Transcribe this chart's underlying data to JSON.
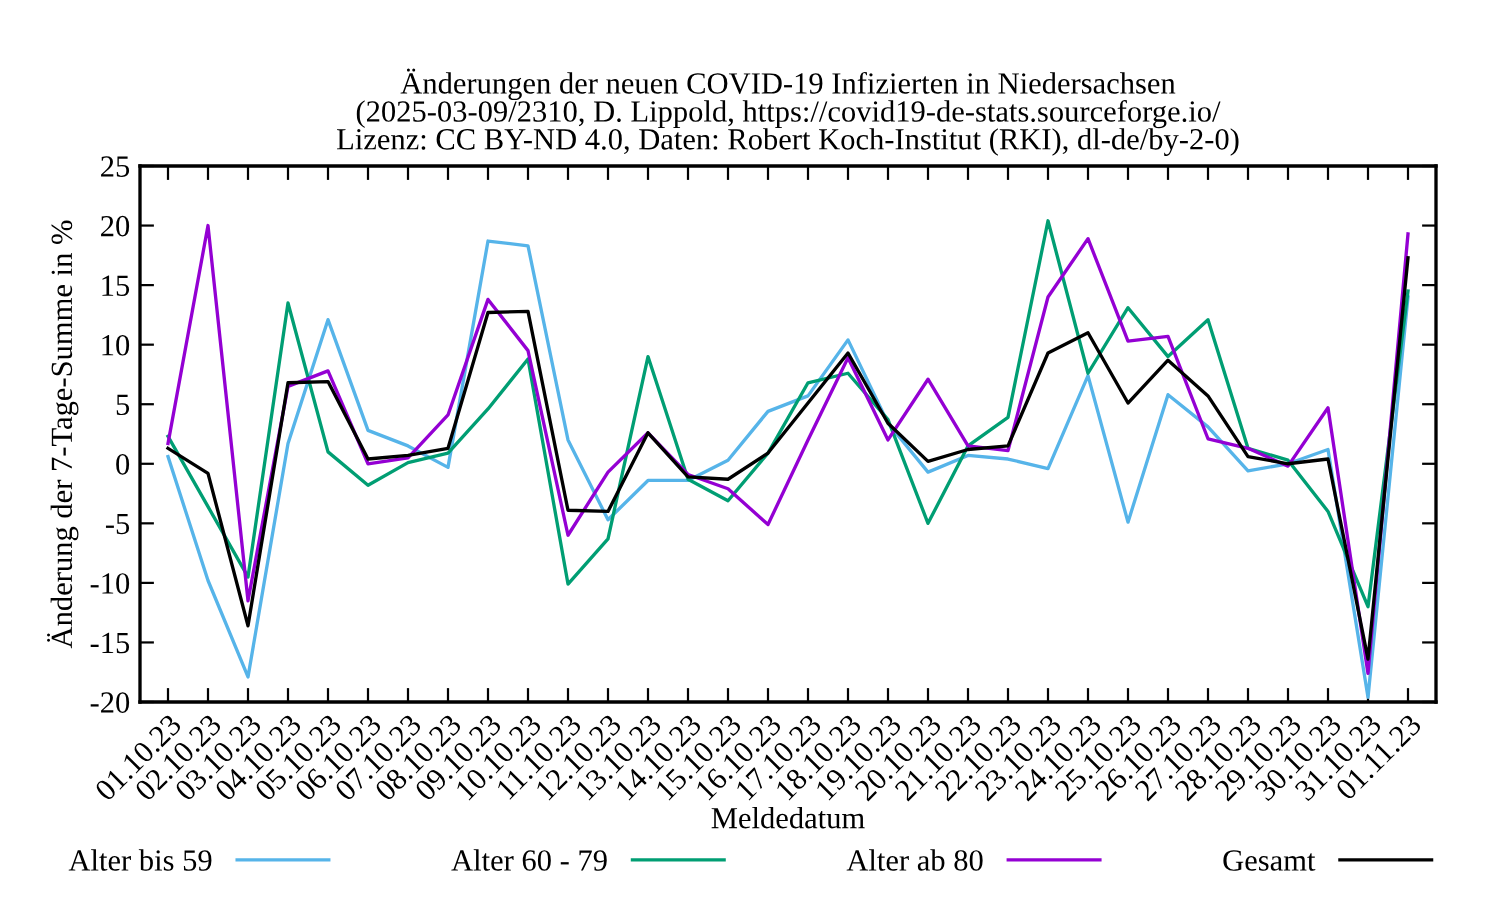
{
  "chart_data": {
    "type": "line",
    "title": "Änderungen der neuen COVID-19 Infizierten in Niedersachsen\n(2025-03-09/2310, D. Lippold, https://covid19-de-stats.sourceforge.io/\nLizenz: CC BY-ND 4.0, Daten: Robert Koch-Institut (RKI), dl-de/by-2-0)",
    "xlabel": "Meldedatum",
    "ylabel": "Änderung der 7-Tage-Summe in %",
    "categories": [
      "01.10.23",
      "02.10.23",
      "03.10.23",
      "04.10.23",
      "05.10.23",
      "06.10.23",
      "07.10.23",
      "08.10.23",
      "09.10.23",
      "10.10.23",
      "11.10.23",
      "12.10.23",
      "13.10.23",
      "14.10.23",
      "15.10.23",
      "16.10.23",
      "17.10.23",
      "18.10.23",
      "19.10.23",
      "20.10.23",
      "21.10.23",
      "22.10.23",
      "23.10.23",
      "24.10.23",
      "25.10.23",
      "26.10.23",
      "27.10.23",
      "28.10.23",
      "29.10.23",
      "30.10.23",
      "31.10.23",
      "01.11.23"
    ],
    "ylim": [
      -20,
      25
    ],
    "yticks": [
      -20,
      -15,
      -10,
      -5,
      0,
      5,
      10,
      15,
      20,
      25
    ],
    "grid": false,
    "legend": "bottom",
    "line_style": "solid",
    "marker": "none",
    "series": [
      {
        "name": "Alter bis 59",
        "color": "#56b4e9",
        "values": [
          0.6,
          -9.8,
          -17.9,
          1.7,
          12.1,
          2.8,
          1.5,
          -0.3,
          18.7,
          18.3,
          2.0,
          -4.7,
          -1.4,
          -1.4,
          0.3,
          4.4,
          5.7,
          10.4,
          3.4,
          -0.7,
          0.7,
          0.4,
          -0.4,
          7.4,
          -4.9,
          5.8,
          3.1,
          -0.6,
          0.0,
          1.2,
          -19.6,
          14.0
        ]
      },
      {
        "name": "Alter 60 - 79",
        "color": "#009e73",
        "values": [
          2.3,
          -3.6,
          -9.5,
          13.5,
          1.0,
          -1.8,
          0.1,
          0.9,
          4.6,
          8.8,
          -10.1,
          -6.3,
          9.0,
          -1.3,
          -3.1,
          0.9,
          6.8,
          7.6,
          3.7,
          -5.0,
          1.5,
          3.9,
          20.4,
          7.6,
          13.1,
          9.0,
          12.1,
          1.3,
          0.3,
          -4.0,
          -12.0,
          14.5
        ]
      },
      {
        "name": "Alter ab 80",
        "color": "#9400d3",
        "values": [
          1.7,
          20.0,
          -11.5,
          6.5,
          7.8,
          0.0,
          0.5,
          4.1,
          13.8,
          9.5,
          -6.0,
          -0.7,
          2.6,
          -0.9,
          -2.1,
          -5.1,
          2.0,
          8.9,
          2.0,
          7.1,
          1.5,
          1.1,
          14.0,
          18.9,
          10.3,
          10.7,
          2.1,
          1.3,
          -0.2,
          4.7,
          -17.6,
          19.3
        ]
      },
      {
        "name": "Gesamt",
        "color": "#000000",
        "values": [
          1.3,
          -0.8,
          -13.6,
          6.8,
          6.9,
          0.4,
          0.7,
          1.3,
          12.7,
          12.8,
          -3.9,
          -4.0,
          2.6,
          -1.1,
          -1.3,
          0.9,
          5.1,
          9.3,
          3.4,
          0.2,
          1.2,
          1.5,
          9.3,
          11.0,
          5.1,
          8.7,
          5.7,
          0.6,
          0.0,
          0.4,
          -16.4,
          17.3
        ]
      }
    ]
  }
}
